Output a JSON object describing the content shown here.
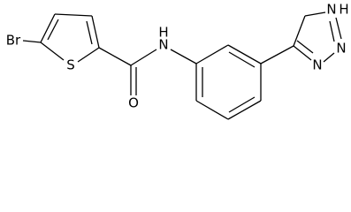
{
  "atoms": [
    {
      "label": "Br"
    },
    {
      "label": "S"
    },
    {
      "label": "O"
    },
    {
      "label": "N"
    },
    {
      "label": "H"
    },
    {
      "label": "N"
    },
    {
      "label": "H"
    },
    {
      "label": "N"
    },
    {
      "label": "N"
    }
  ]
}
